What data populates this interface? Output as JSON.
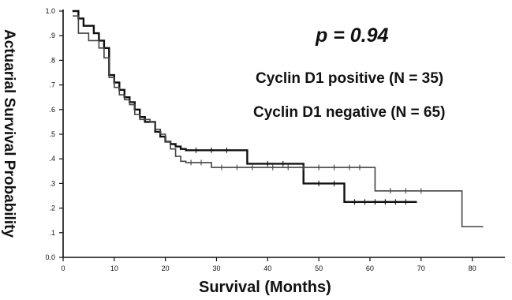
{
  "chart_data": {
    "type": "line",
    "title": "",
    "xlabel": "Survival  (Months)",
    "ylabel": "Actuarial Survival Probability",
    "xlim": [
      0,
      85
    ],
    "ylim": [
      0,
      1.0
    ],
    "x_ticks": [
      {
        "value": 0,
        "label": "0"
      },
      {
        "value": 10,
        "label": "10"
      },
      {
        "value": 20,
        "label": "20"
      },
      {
        "value": 30,
        "label": "30"
      },
      {
        "value": 40,
        "label": "40"
      },
      {
        "value": 50,
        "label": "50"
      },
      {
        "value": 60,
        "label": "60"
      },
      {
        "value": 70,
        "label": "70"
      },
      {
        "value": 80,
        "label": "80"
      }
    ],
    "y_ticks": [
      {
        "value": 0.0,
        "label": "0.0"
      },
      {
        "value": 0.1,
        "label": ".1"
      },
      {
        "value": 0.2,
        "label": ".2"
      },
      {
        "value": 0.3,
        "label": ".3"
      },
      {
        "value": 0.4,
        "label": ".4"
      },
      {
        "value": 0.5,
        "label": ".5"
      },
      {
        "value": 0.6,
        "label": ".6"
      },
      {
        "value": 0.7,
        "label": ".7"
      },
      {
        "value": 0.8,
        "label": ".8"
      },
      {
        "value": 0.9,
        "label": ".9"
      },
      {
        "value": 1.0,
        "label": "1.0"
      }
    ],
    "grid": false,
    "annotation": "p = 0.94",
    "legend_entries": [
      "Cyclin D1 positive (N = 35)",
      "Cyclin D1 negative (N = 65)"
    ],
    "series": [
      {
        "color": "#111111",
        "line_width": 2.4,
        "x": [
          2,
          3,
          4,
          6,
          7,
          8,
          9,
          10,
          11,
          12,
          13,
          14,
          15,
          16,
          18,
          19,
          20,
          21,
          22,
          23,
          24,
          36,
          36,
          47,
          47,
          55,
          55,
          69
        ],
        "y": [
          1.0,
          0.97,
          0.94,
          0.91,
          0.88,
          0.85,
          0.74,
          0.71,
          0.68,
          0.65,
          0.63,
          0.6,
          0.57,
          0.55,
          0.51,
          0.49,
          0.47,
          0.46,
          0.45,
          0.44,
          0.435,
          0.435,
          0.38,
          0.38,
          0.3,
          0.3,
          0.225,
          0.225
        ],
        "censored": [
          {
            "x": 26,
            "y": 0.435
          },
          {
            "x": 29,
            "y": 0.435
          },
          {
            "x": 32,
            "y": 0.435
          },
          {
            "x": 40,
            "y": 0.38
          },
          {
            "x": 43,
            "y": 0.38
          },
          {
            "x": 50,
            "y": 0.3
          },
          {
            "x": 53,
            "y": 0.3
          },
          {
            "x": 57,
            "y": 0.225
          },
          {
            "x": 59,
            "y": 0.225
          },
          {
            "x": 61,
            "y": 0.225
          },
          {
            "x": 63,
            "y": 0.225
          },
          {
            "x": 65,
            "y": 0.225
          },
          {
            "x": 67,
            "y": 0.225
          }
        ]
      },
      {
        "color": "#444444",
        "line_width": 1.6,
        "x": [
          2,
          3,
          5,
          7,
          8,
          9,
          10,
          11,
          12,
          13,
          14,
          15,
          17,
          18,
          19,
          20,
          21,
          22,
          23,
          24,
          29,
          61,
          61,
          78,
          78,
          82
        ],
        "y": [
          0.98,
          0.91,
          0.88,
          0.85,
          0.81,
          0.73,
          0.69,
          0.66,
          0.64,
          0.62,
          0.58,
          0.56,
          0.55,
          0.52,
          0.5,
          0.47,
          0.44,
          0.41,
          0.39,
          0.385,
          0.365,
          0.365,
          0.27,
          0.27,
          0.125,
          0.125
        ],
        "censored": [
          {
            "x": 25,
            "y": 0.385
          },
          {
            "x": 27,
            "y": 0.385
          },
          {
            "x": 31,
            "y": 0.365
          },
          {
            "x": 34,
            "y": 0.365
          },
          {
            "x": 37,
            "y": 0.365
          },
          {
            "x": 41,
            "y": 0.365
          },
          {
            "x": 44,
            "y": 0.365
          },
          {
            "x": 47,
            "y": 0.365
          },
          {
            "x": 50,
            "y": 0.365
          },
          {
            "x": 53,
            "y": 0.365
          },
          {
            "x": 56,
            "y": 0.365
          },
          {
            "x": 58,
            "y": 0.365
          },
          {
            "x": 64,
            "y": 0.27
          },
          {
            "x": 67,
            "y": 0.27
          },
          {
            "x": 70,
            "y": 0.27
          }
        ]
      }
    ]
  }
}
